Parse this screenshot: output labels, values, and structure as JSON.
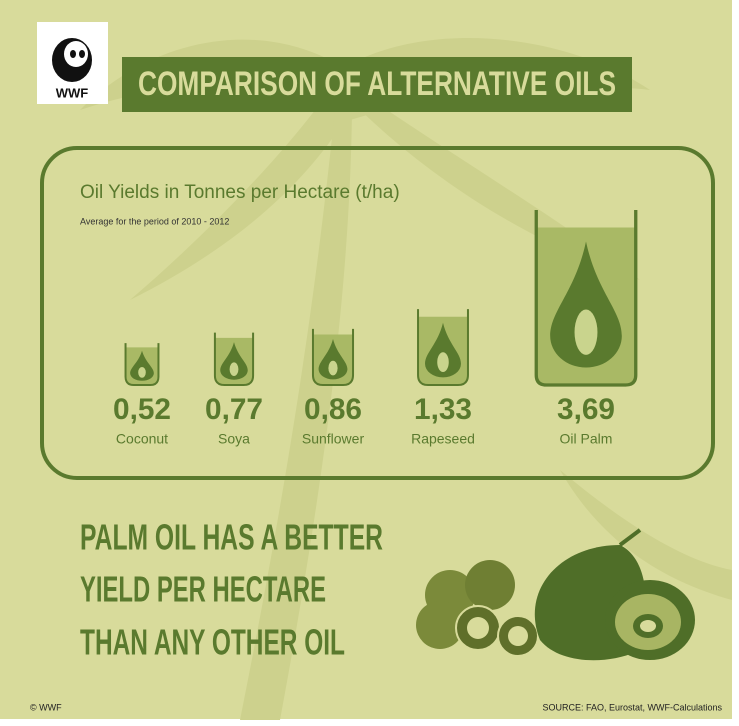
{
  "logo": {
    "text": "WWF"
  },
  "chart_data": {
    "type": "bar",
    "title": "COMPARISON OF ALTERNATIVE OILS",
    "subtitle": "Oil Yields in Tonnes per Hectare (t/ha)",
    "note": "Average for the period of 2010 - 2012",
    "categories": [
      "Coconut",
      "Soya",
      "Sunflower",
      "Rapeseed",
      "Oil Palm"
    ],
    "values": [
      0.52,
      0.77,
      0.86,
      1.33,
      3.69
    ],
    "value_labels": [
      "0,52",
      "0,77",
      "0,86",
      "1,33",
      "3,69"
    ],
    "color": "#5a7a2e"
  },
  "headline": [
    "PALM OIL HAS A BETTER",
    "YIELD PER HECTARE",
    "THAN ANY OTHER OIL"
  ],
  "footer": {
    "copyright": "© WWF",
    "source": "SOURCE: FAO, Eurostat, WWF-Calculations"
  }
}
